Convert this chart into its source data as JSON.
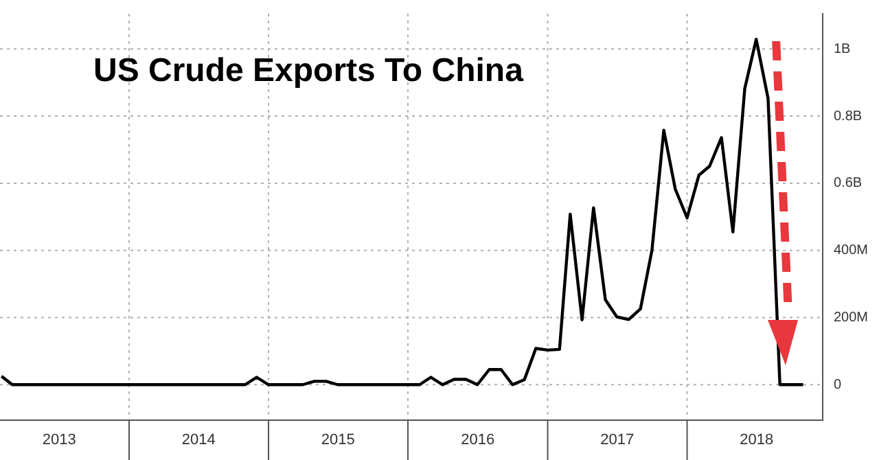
{
  "chart_data": {
    "type": "line",
    "title": "US Crude Exports To China",
    "x": [
      "2013-02",
      "2013-03",
      "2014-11",
      "2014-12",
      "2015-01",
      "2015-04",
      "2015-05",
      "2015-06",
      "2015-07",
      "2016-02",
      "2016-03",
      "2016-04",
      "2016-05",
      "2016-06",
      "2016-07",
      "2016-08",
      "2016-09",
      "2016-10",
      "2016-11",
      "2016-12",
      "2017-01",
      "2017-02",
      "2017-03",
      "2017-04",
      "2017-05",
      "2017-06",
      "2017-07",
      "2017-08",
      "2017-09",
      "2017-10",
      "2017-11",
      "2017-12",
      "2018-01",
      "2018-02",
      "2018-03",
      "2018-04",
      "2018-05",
      "2018-06",
      "2018-07",
      "2018-08",
      "2018-09",
      "2018-10",
      "2018-11"
    ],
    "series": [
      {
        "color": "#000000",
        "values": [
          25000000,
          0,
          0,
          22000000,
          0,
          0,
          10000000,
          10000000,
          0,
          0,
          22000000,
          0,
          16000000,
          16000000,
          0,
          45000000,
          45000000,
          0,
          15000000,
          108000000,
          103000000,
          105000000,
          508000000,
          193000000,
          527000000,
          253000000,
          202000000,
          194000000,
          226000000,
          400000000,
          758000000,
          583000000,
          497000000,
          624000000,
          651000000,
          736000000,
          455000000,
          882000000,
          1029000000,
          853000000,
          0,
          0,
          0
        ]
      }
    ],
    "xlim": [
      "2013-01-28",
      "2018-12-22"
    ],
    "xticks": [
      {
        "value": "2013-07-02",
        "label": "2013"
      },
      {
        "value": "2014-01-01",
        "label": null
      },
      {
        "value": "2014-07-02",
        "label": "2014"
      },
      {
        "value": "2015-01-01",
        "label": null
      },
      {
        "value": "2015-07-02",
        "label": "2015"
      },
      {
        "value": "2016-01-01",
        "label": null
      },
      {
        "value": "2016-07-02",
        "label": "2016"
      },
      {
        "value": "2017-01-01",
        "label": null
      },
      {
        "value": "2017-07-02",
        "label": "2017"
      },
      {
        "value": "2018-01-01",
        "label": null
      },
      {
        "value": "2018-07-02",
        "label": "2018"
      }
    ],
    "ylim": [
      -105000000,
      1105000000
    ],
    "yticks": [
      0,
      {
        "value": 200000000,
        "label": "200M"
      },
      {
        "value": 400000000,
        "label": "400M"
      },
      {
        "value": 600000000,
        "label": "0.6B"
      },
      {
        "value": 800000000,
        "label": "0.8B"
      },
      {
        "value": 1000000000,
        "label": "1B"
      }
    ],
    "grid": true,
    "marker": "none",
    "line_style": "solid"
  }
}
